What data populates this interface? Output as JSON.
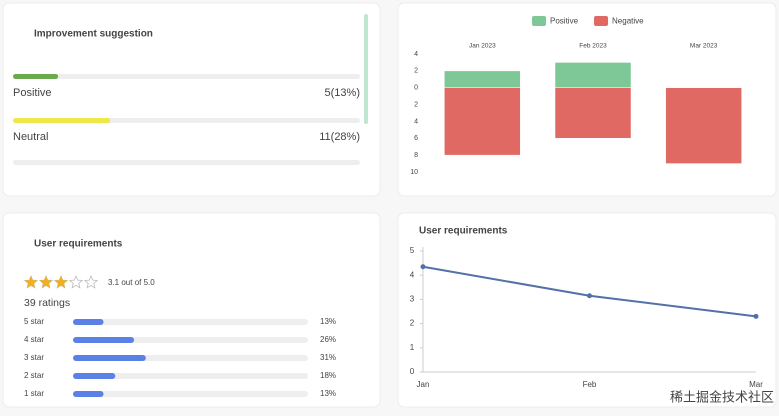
{
  "improvement": {
    "title": "Improvement suggestion",
    "items": [
      {
        "label": "Positive",
        "count_label": "5(13%)",
        "percent": 13,
        "color": "#6aaa4f"
      },
      {
        "label": "Neutral",
        "count_label": "11(28%)",
        "percent": 28,
        "color": "#eee84a"
      }
    ]
  },
  "chart_data": [
    {
      "type": "bar",
      "stacked": true,
      "legend": "top",
      "categories": [
        "Jan 2023",
        "Feb 2023",
        "Mar 2023"
      ],
      "series": [
        {
          "name": "Positive",
          "color": "#7ec796",
          "values": [
            2,
            3,
            0
          ]
        },
        {
          "name": "Negative",
          "color": "#e06a63",
          "values": [
            -8,
            -6,
            -9
          ]
        }
      ],
      "ylim": [
        -10,
        4
      ],
      "yticks": [
        4,
        2,
        0,
        {
          "value": -2,
          "label": "2"
        },
        {
          "value": -4,
          "label": "4"
        },
        {
          "value": -6,
          "label": "6"
        },
        {
          "value": -8,
          "label": "8"
        },
        {
          "value": -10,
          "label": "10"
        }
      ]
    },
    {
      "type": "line",
      "title": "User requirements",
      "categories": [
        "Jan",
        "Feb",
        "Mar"
      ],
      "series": [
        {
          "color": "#5470a8",
          "values": [
            4.35,
            3.15,
            2.3
          ]
        }
      ],
      "ylim": [
        0,
        5
      ],
      "yticks": [
        0,
        1,
        2,
        3,
        4,
        5
      ]
    }
  ],
  "ratings": {
    "title": "User requirements",
    "rating": 3.1,
    "max": 5,
    "rating_label": "3.1 out of 5.0",
    "count_label": "39 ratings",
    "color": "#5b80e6",
    "rows": [
      {
        "label": "5 star",
        "percent": 13,
        "percent_label": "13%"
      },
      {
        "label": "4 star",
        "percent": 26,
        "percent_label": "26%"
      },
      {
        "label": "3 star",
        "percent": 31,
        "percent_label": "31%"
      },
      {
        "label": "2 star",
        "percent": 18,
        "percent_label": "18%"
      },
      {
        "label": "1 star",
        "percent": 13,
        "percent_label": "13%"
      }
    ]
  },
  "watermark": "稀土掘金技术社区"
}
